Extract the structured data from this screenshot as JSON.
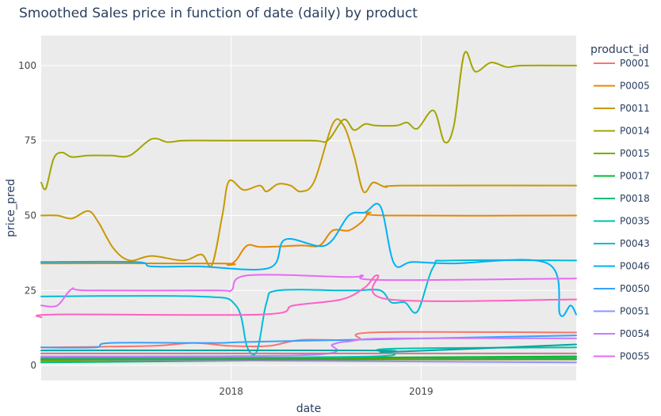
{
  "chart_data": {
    "type": "line",
    "title": "Smoothed Sales price in function of date (daily) by product",
    "xlabel": "date",
    "ylabel": "price_pred",
    "xlim": [
      "2017-01-01",
      "2019-10-26"
    ],
    "ylim": [
      -5,
      110
    ],
    "x_ticks": [
      "2018-01-01",
      "2019-01-01"
    ],
    "x_tick_labels": [
      "2018",
      "2019"
    ],
    "y_ticks": [
      0,
      25,
      50,
      75,
      100
    ],
    "grid": true,
    "background_color": "#ebebeb",
    "legend": {
      "title": "product_id",
      "placement": "right"
    },
    "series": [
      {
        "name": "P0001",
        "color": "#F8766D",
        "points": [
          [
            "2017-01-01",
            6
          ],
          [
            "2017-08-01",
            6.5
          ],
          [
            "2017-10-20",
            7.5
          ],
          [
            "2018-01-01",
            6.5
          ],
          [
            "2018-03-15",
            6.5
          ],
          [
            "2018-05-15",
            8.5
          ],
          [
            "2018-09-01",
            8.5
          ],
          [
            "2018-10-01",
            11
          ],
          [
            "2019-10-26",
            11
          ]
        ]
      },
      {
        "name": "P0005",
        "color": "#E58700",
        "points": [
          [
            "2017-01-01",
            34
          ],
          [
            "2017-12-10",
            34
          ],
          [
            "2017-12-25",
            33.5
          ],
          [
            "2018-01-10",
            35
          ],
          [
            "2018-02-01",
            40
          ],
          [
            "2018-03-01",
            39.5
          ],
          [
            "2018-05-15",
            40
          ],
          [
            "2018-06-20",
            40
          ],
          [
            "2018-07-15",
            45
          ],
          [
            "2018-08-15",
            45
          ],
          [
            "2018-09-10",
            48
          ],
          [
            "2018-09-25",
            51
          ],
          [
            "2018-10-25",
            50
          ],
          [
            "2019-10-26",
            50
          ]
        ]
      },
      {
        "name": "P0011",
        "color": "#C99800",
        "points": [
          [
            "2017-01-01",
            50
          ],
          [
            "2017-02-01",
            50
          ],
          [
            "2017-03-01",
            49
          ],
          [
            "2017-04-01",
            51.5
          ],
          [
            "2017-04-20",
            48
          ],
          [
            "2017-05-20",
            39
          ],
          [
            "2017-06-20",
            35
          ],
          [
            "2017-08-01",
            36.5
          ],
          [
            "2017-10-01",
            35
          ],
          [
            "2017-11-05",
            37
          ],
          [
            "2017-11-25",
            33.5
          ],
          [
            "2017-12-15",
            50
          ],
          [
            "2017-12-28",
            61.5
          ],
          [
            "2018-01-25",
            58.5
          ],
          [
            "2018-02-25",
            60
          ],
          [
            "2018-03-10",
            58
          ],
          [
            "2018-04-01",
            60.5
          ],
          [
            "2018-04-25",
            60
          ],
          [
            "2018-05-15",
            58
          ],
          [
            "2018-06-10",
            61.5
          ],
          [
            "2018-07-15",
            80.5
          ],
          [
            "2018-08-05",
            80
          ],
          [
            "2018-08-25",
            70
          ],
          [
            "2018-09-12",
            58
          ],
          [
            "2018-10-01",
            61
          ],
          [
            "2018-10-25",
            59.5
          ],
          [
            "2018-12-01",
            60
          ],
          [
            "2019-10-26",
            60
          ]
        ]
      },
      {
        "name": "P0014",
        "color": "#A3A500",
        "points": [
          [
            "2017-01-01",
            61
          ],
          [
            "2017-01-10",
            59
          ],
          [
            "2017-01-25",
            69
          ],
          [
            "2017-02-10",
            71
          ],
          [
            "2017-03-01",
            69.5
          ],
          [
            "2017-04-01",
            70
          ],
          [
            "2017-05-15",
            70
          ],
          [
            "2017-06-20",
            70
          ],
          [
            "2017-08-01",
            75.5
          ],
          [
            "2017-09-01",
            74.5
          ],
          [
            "2017-10-01",
            75
          ],
          [
            "2017-12-01",
            75
          ],
          [
            "2018-06-01",
            75
          ],
          [
            "2018-07-05",
            75
          ],
          [
            "2018-08-05",
            82
          ],
          [
            "2018-08-25",
            78.5
          ],
          [
            "2018-09-15",
            80.5
          ],
          [
            "2018-10-05",
            80
          ],
          [
            "2018-11-15",
            80
          ],
          [
            "2018-12-05",
            81
          ],
          [
            "2018-12-25",
            79
          ],
          [
            "2019-01-25",
            85
          ],
          [
            "2019-02-15",
            74.5
          ],
          [
            "2019-03-05",
            80
          ],
          [
            "2019-03-25",
            104
          ],
          [
            "2019-04-15",
            98
          ],
          [
            "2019-05-15",
            101
          ],
          [
            "2019-06-15",
            99.5
          ],
          [
            "2019-07-15",
            100
          ],
          [
            "2019-10-26",
            100
          ]
        ]
      },
      {
        "name": "P0015",
        "color": "#6BB100",
        "points": [
          [
            "2017-01-01",
            1.5
          ],
          [
            "2019-10-26",
            3
          ]
        ]
      },
      {
        "name": "P0017",
        "color": "#00BA38",
        "points": [
          [
            "2017-01-01",
            2
          ],
          [
            "2019-10-26",
            3
          ]
        ]
      },
      {
        "name": "P0018",
        "color": "#00BF7D",
        "points": [
          [
            "2017-01-01",
            1
          ],
          [
            "2019-10-26",
            2.5
          ]
        ]
      },
      {
        "name": "P0035",
        "color": "#00C0AF",
        "points": [
          [
            "2017-01-01",
            2.5
          ],
          [
            "2018-10-01",
            3
          ],
          [
            "2018-10-25",
            5.5
          ],
          [
            "2019-10-26",
            6
          ]
        ]
      },
      {
        "name": "P0043",
        "color": "#00BCD8",
        "points": [
          [
            "2017-01-01",
            23
          ],
          [
            "2017-11-01",
            23
          ],
          [
            "2018-01-10",
            20
          ],
          [
            "2018-02-01",
            6
          ],
          [
            "2018-02-20",
            5
          ],
          [
            "2018-03-10",
            21
          ],
          [
            "2018-04-01",
            25
          ],
          [
            "2018-08-01",
            25
          ],
          [
            "2018-09-01",
            25
          ],
          [
            "2018-10-15",
            25
          ],
          [
            "2018-11-05",
            21
          ],
          [
            "2018-12-01",
            21
          ],
          [
            "2018-12-25",
            18
          ],
          [
            "2019-01-25",
            33
          ],
          [
            "2019-03-01",
            35
          ],
          [
            "2019-10-26",
            35
          ]
        ]
      },
      {
        "name": "P0046",
        "color": "#00B0F6",
        "points": [
          [
            "2017-01-01",
            34.5
          ],
          [
            "2017-07-01",
            34.5
          ],
          [
            "2017-08-01",
            33
          ],
          [
            "2017-11-01",
            33
          ],
          [
            "2018-03-15",
            32.5
          ],
          [
            "2018-04-15",
            42
          ],
          [
            "2018-07-01",
            40
          ],
          [
            "2018-08-15",
            50
          ],
          [
            "2018-09-15",
            51
          ],
          [
            "2018-10-15",
            53
          ],
          [
            "2018-11-10",
            34
          ],
          [
            "2018-12-15",
            34.5
          ],
          [
            "2019-03-01",
            34
          ],
          [
            "2019-09-01",
            34
          ],
          [
            "2019-09-25",
            17
          ],
          [
            "2019-10-15",
            20
          ],
          [
            "2019-10-26",
            17
          ]
        ]
      },
      {
        "name": "P0050",
        "color": "#35A2FF",
        "points": [
          [
            "2017-01-01",
            6
          ],
          [
            "2017-04-15",
            6
          ],
          [
            "2017-05-15",
            7.5
          ],
          [
            "2017-12-01",
            7.5
          ],
          [
            "2018-03-15",
            8
          ],
          [
            "2019-10-26",
            10
          ]
        ]
      },
      {
        "name": "P0051",
        "color": "#9590FF",
        "points": [
          [
            "2017-01-01",
            2
          ],
          [
            "2019-10-26",
            1
          ]
        ]
      },
      {
        "name": "P0054",
        "color": "#C77CFF",
        "points": [
          [
            "2017-01-01",
            3
          ],
          [
            "2018-06-01",
            3.5
          ],
          [
            "2018-07-15",
            7
          ],
          [
            "2018-08-15",
            8
          ],
          [
            "2018-11-01",
            9
          ],
          [
            "2019-10-26",
            9
          ]
        ]
      },
      {
        "name": "P0055",
        "color": "#E76BF3",
        "points": [
          [
            "2017-01-01",
            20
          ],
          [
            "2017-02-01",
            20
          ],
          [
            "2017-03-01",
            25.5
          ],
          [
            "2017-04-01",
            25
          ],
          [
            "2017-12-01",
            25
          ],
          [
            "2018-01-01",
            25
          ],
          [
            "2018-02-01",
            30
          ],
          [
            "2018-08-15",
            29.5
          ],
          [
            "2018-09-10",
            30
          ],
          [
            "2018-10-15",
            28.5
          ],
          [
            "2019-10-26",
            29
          ]
        ]
      },
      {
        "name": "",
        "color": "#FF61C3",
        "points": [
          [
            "2017-01-01",
            16
          ],
          [
            "2017-02-01",
            17
          ],
          [
            "2018-03-01",
            17
          ],
          [
            "2018-05-01",
            20
          ],
          [
            "2018-08-01",
            22
          ],
          [
            "2018-09-15",
            26
          ],
          [
            "2018-10-10",
            30
          ],
          [
            "2018-11-01",
            22
          ],
          [
            "2019-10-26",
            22
          ]
        ]
      },
      {
        "name": "",
        "color": "#C87A8A",
        "points": [
          [
            "2017-01-01",
            4
          ],
          [
            "2019-10-26",
            4
          ]
        ]
      },
      {
        "name": "",
        "color": "#7E8B00",
        "points": [
          [
            "2017-01-01",
            2
          ],
          [
            "2019-10-26",
            2
          ]
        ]
      },
      {
        "name": "",
        "color": "#00A6A0",
        "points": [
          [
            "2017-01-01",
            5
          ],
          [
            "2018-10-01",
            5
          ],
          [
            "2018-11-01",
            4.5
          ],
          [
            "2019-10-26",
            7
          ]
        ]
      }
    ]
  }
}
